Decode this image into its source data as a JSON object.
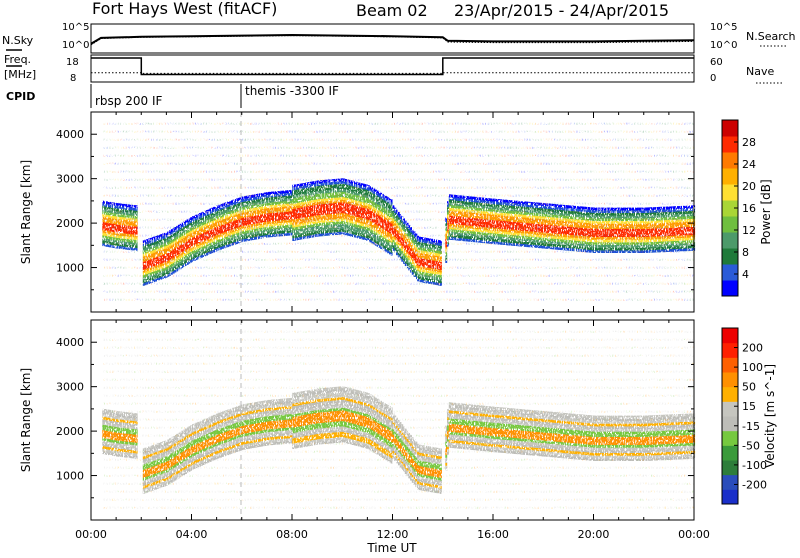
{
  "header": {
    "station": "Fort Hays West (fitACF)",
    "beam": "Beam 02",
    "date_range": "23/Apr/2015 - 24/Apr/2015"
  },
  "side_labels": {
    "nsky": "N.Sky",
    "freq_line1": "Freq.",
    "freq_line2": "[MHz]",
    "cpid": "CPID",
    "nsearch": "N.Search",
    "nave": "Nave"
  },
  "cpid_segments": [
    {
      "label": "rbsp 200 IF",
      "start_hour": 0
    },
    {
      "label": "themis -3300 IF",
      "start_hour": 6
    }
  ],
  "chart_data": [
    {
      "type": "line",
      "id": "noise",
      "y_ticks_left": [
        "10^5",
        "10^0"
      ],
      "y_ticks_right": [
        "10^5",
        "10^0"
      ],
      "series": [
        {
          "name": "N.Sky",
          "x": [
            0,
            0.4,
            2,
            4,
            6,
            8,
            10,
            12,
            14,
            14.2,
            16,
            18,
            20,
            22,
            24
          ],
          "y": [
            1.6,
            2.6,
            2.8,
            2.9,
            3.0,
            3.1,
            3.0,
            2.9,
            2.7,
            2.1,
            2.0,
            2.0,
            2.0,
            2.1,
            2.2
          ]
        },
        {
          "name": "N.Search",
          "x": [
            0,
            0.4,
            2,
            4,
            6,
            8,
            10,
            12,
            14,
            14.2,
            16,
            18,
            20,
            22,
            24
          ],
          "y": [
            1.4,
            2.5,
            2.7,
            2.8,
            2.9,
            3.0,
            2.9,
            2.8,
            2.6,
            1.9,
            1.8,
            1.8,
            1.8,
            1.9,
            2.0
          ]
        }
      ]
    },
    {
      "type": "line",
      "id": "frequency",
      "y_ticks_left": [
        "18",
        "8"
      ],
      "y_ticks_right": [
        "60",
        "0"
      ],
      "series": [
        {
          "name": "Freq.",
          "x": [
            0,
            2,
            2,
            14,
            14,
            24
          ],
          "y": [
            18,
            18,
            10.5,
            10.5,
            18,
            18
          ]
        },
        {
          "name": "Nave",
          "x": [
            0,
            2,
            2,
            14,
            14,
            24
          ],
          "y": [
            20,
            20,
            18,
            18,
            20,
            20
          ]
        }
      ]
    },
    {
      "type": "heatmap",
      "id": "power",
      "ylabel": "Slant Range [km]",
      "y_ticks": [
        "1000",
        "2000",
        "3000",
        "4000"
      ],
      "colorbar_label": "Power [dB]",
      "colorbar_ticks": [
        "4",
        "8",
        "12",
        "16",
        "20",
        "24",
        "28"
      ],
      "colorbar_colors": [
        "#0000ff",
        "#2a5bd8",
        "#1f7a3a",
        "#4c9a6a",
        "#6fbf3f",
        "#a9d636",
        "#ffe033",
        "#ffb000",
        "#ff7a00",
        "#ff2a00",
        "#cc0000"
      ],
      "echo_band_km": [
        [
          0,
          2050
        ],
        [
          0.5,
          2000
        ],
        [
          1,
          1950
        ],
        [
          1.8,
          1900
        ],
        [
          2,
          1100
        ],
        [
          3,
          1300
        ],
        [
          4,
          1650
        ],
        [
          5,
          1900
        ],
        [
          6,
          2100
        ],
        [
          7,
          2200
        ],
        [
          8,
          2250
        ],
        [
          9,
          2350
        ],
        [
          10,
          2400
        ],
        [
          11,
          2250
        ],
        [
          12,
          1900
        ],
        [
          13,
          1200
        ],
        [
          14,
          1100
        ],
        [
          14.2,
          2150
        ],
        [
          16,
          2050
        ],
        [
          18,
          1950
        ],
        [
          20,
          1850
        ],
        [
          22,
          1850
        ],
        [
          24,
          1900
        ]
      ]
    },
    {
      "type": "heatmap",
      "id": "velocity",
      "ylabel": "Slant Range [km]",
      "xlabel": "Time UT",
      "y_ticks": [
        "1000",
        "2000",
        "3000",
        "4000"
      ],
      "x_ticks": [
        "00:00",
        "04:00",
        "08:00",
        "12:00",
        "16:00",
        "20:00",
        "00:00"
      ],
      "colorbar_label": "Velocity [m s^-1]",
      "colorbar_ticks": [
        "200",
        "100",
        "50",
        "15",
        "-15",
        "-50",
        "-100",
        "-200"
      ],
      "colorbar_colors": [
        "#1a2fc9",
        "#2a4dbb",
        "#2d7d3a",
        "#3a9a3a",
        "#76c93f",
        "#bdbdb8",
        "#c5c5bf",
        "#ffb000",
        "#ff9000",
        "#ff6000",
        "#ff2000",
        "#ee0000"
      ],
      "echo_band_km": [
        [
          0,
          2050
        ],
        [
          0.5,
          2000
        ],
        [
          1,
          1950
        ],
        [
          1.8,
          1900
        ],
        [
          2,
          1100
        ],
        [
          3,
          1300
        ],
        [
          4,
          1650
        ],
        [
          5,
          1900
        ],
        [
          6,
          2100
        ],
        [
          7,
          2200
        ],
        [
          8,
          2250
        ],
        [
          9,
          2350
        ],
        [
          10,
          2400
        ],
        [
          11,
          2250
        ],
        [
          12,
          1900
        ],
        [
          13,
          1200
        ],
        [
          14,
          1100
        ],
        [
          14.2,
          2150
        ],
        [
          16,
          2050
        ],
        [
          18,
          1950
        ],
        [
          20,
          1850
        ],
        [
          22,
          1850
        ],
        [
          24,
          1900
        ]
      ]
    }
  ]
}
